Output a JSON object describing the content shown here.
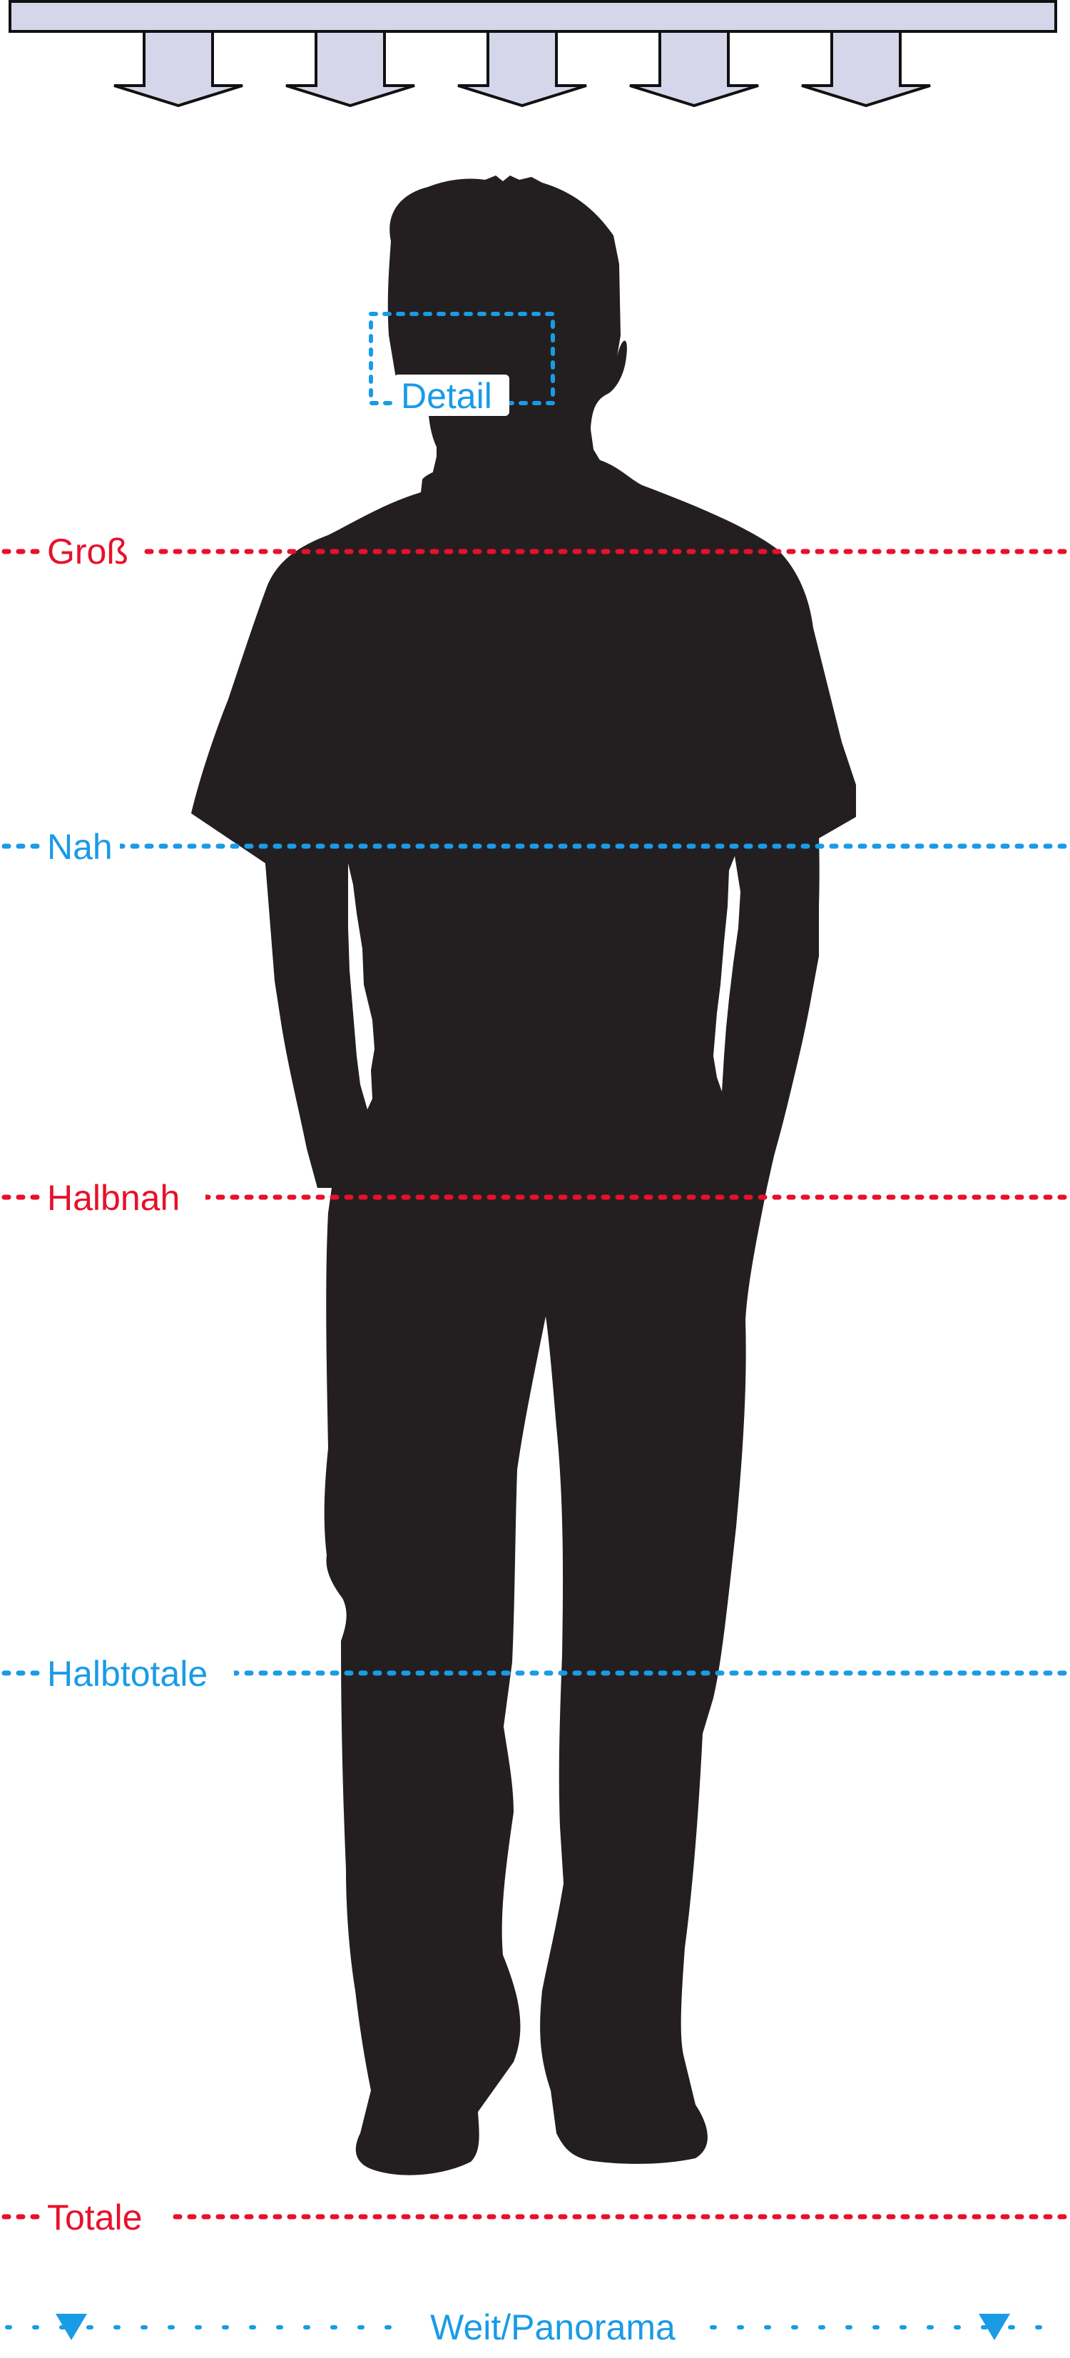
{
  "colors": {
    "red": "#e8102a",
    "blue": "#1a9be6",
    "silhouette": "#231f20",
    "bar_fill": "#d6d6ea",
    "outline": "#111111"
  },
  "icons": [
    "camera-direction-arrow-icon",
    "person-silhouette-icon",
    "down-triangle-icon"
  ],
  "labels": {
    "detail": "Detail",
    "gross": "Groß",
    "nah": "Nah",
    "halbnah": "Halbnah",
    "halbtotale": "Halbtotale",
    "totale": "Totale",
    "weit": "Weit/Panorama"
  }
}
